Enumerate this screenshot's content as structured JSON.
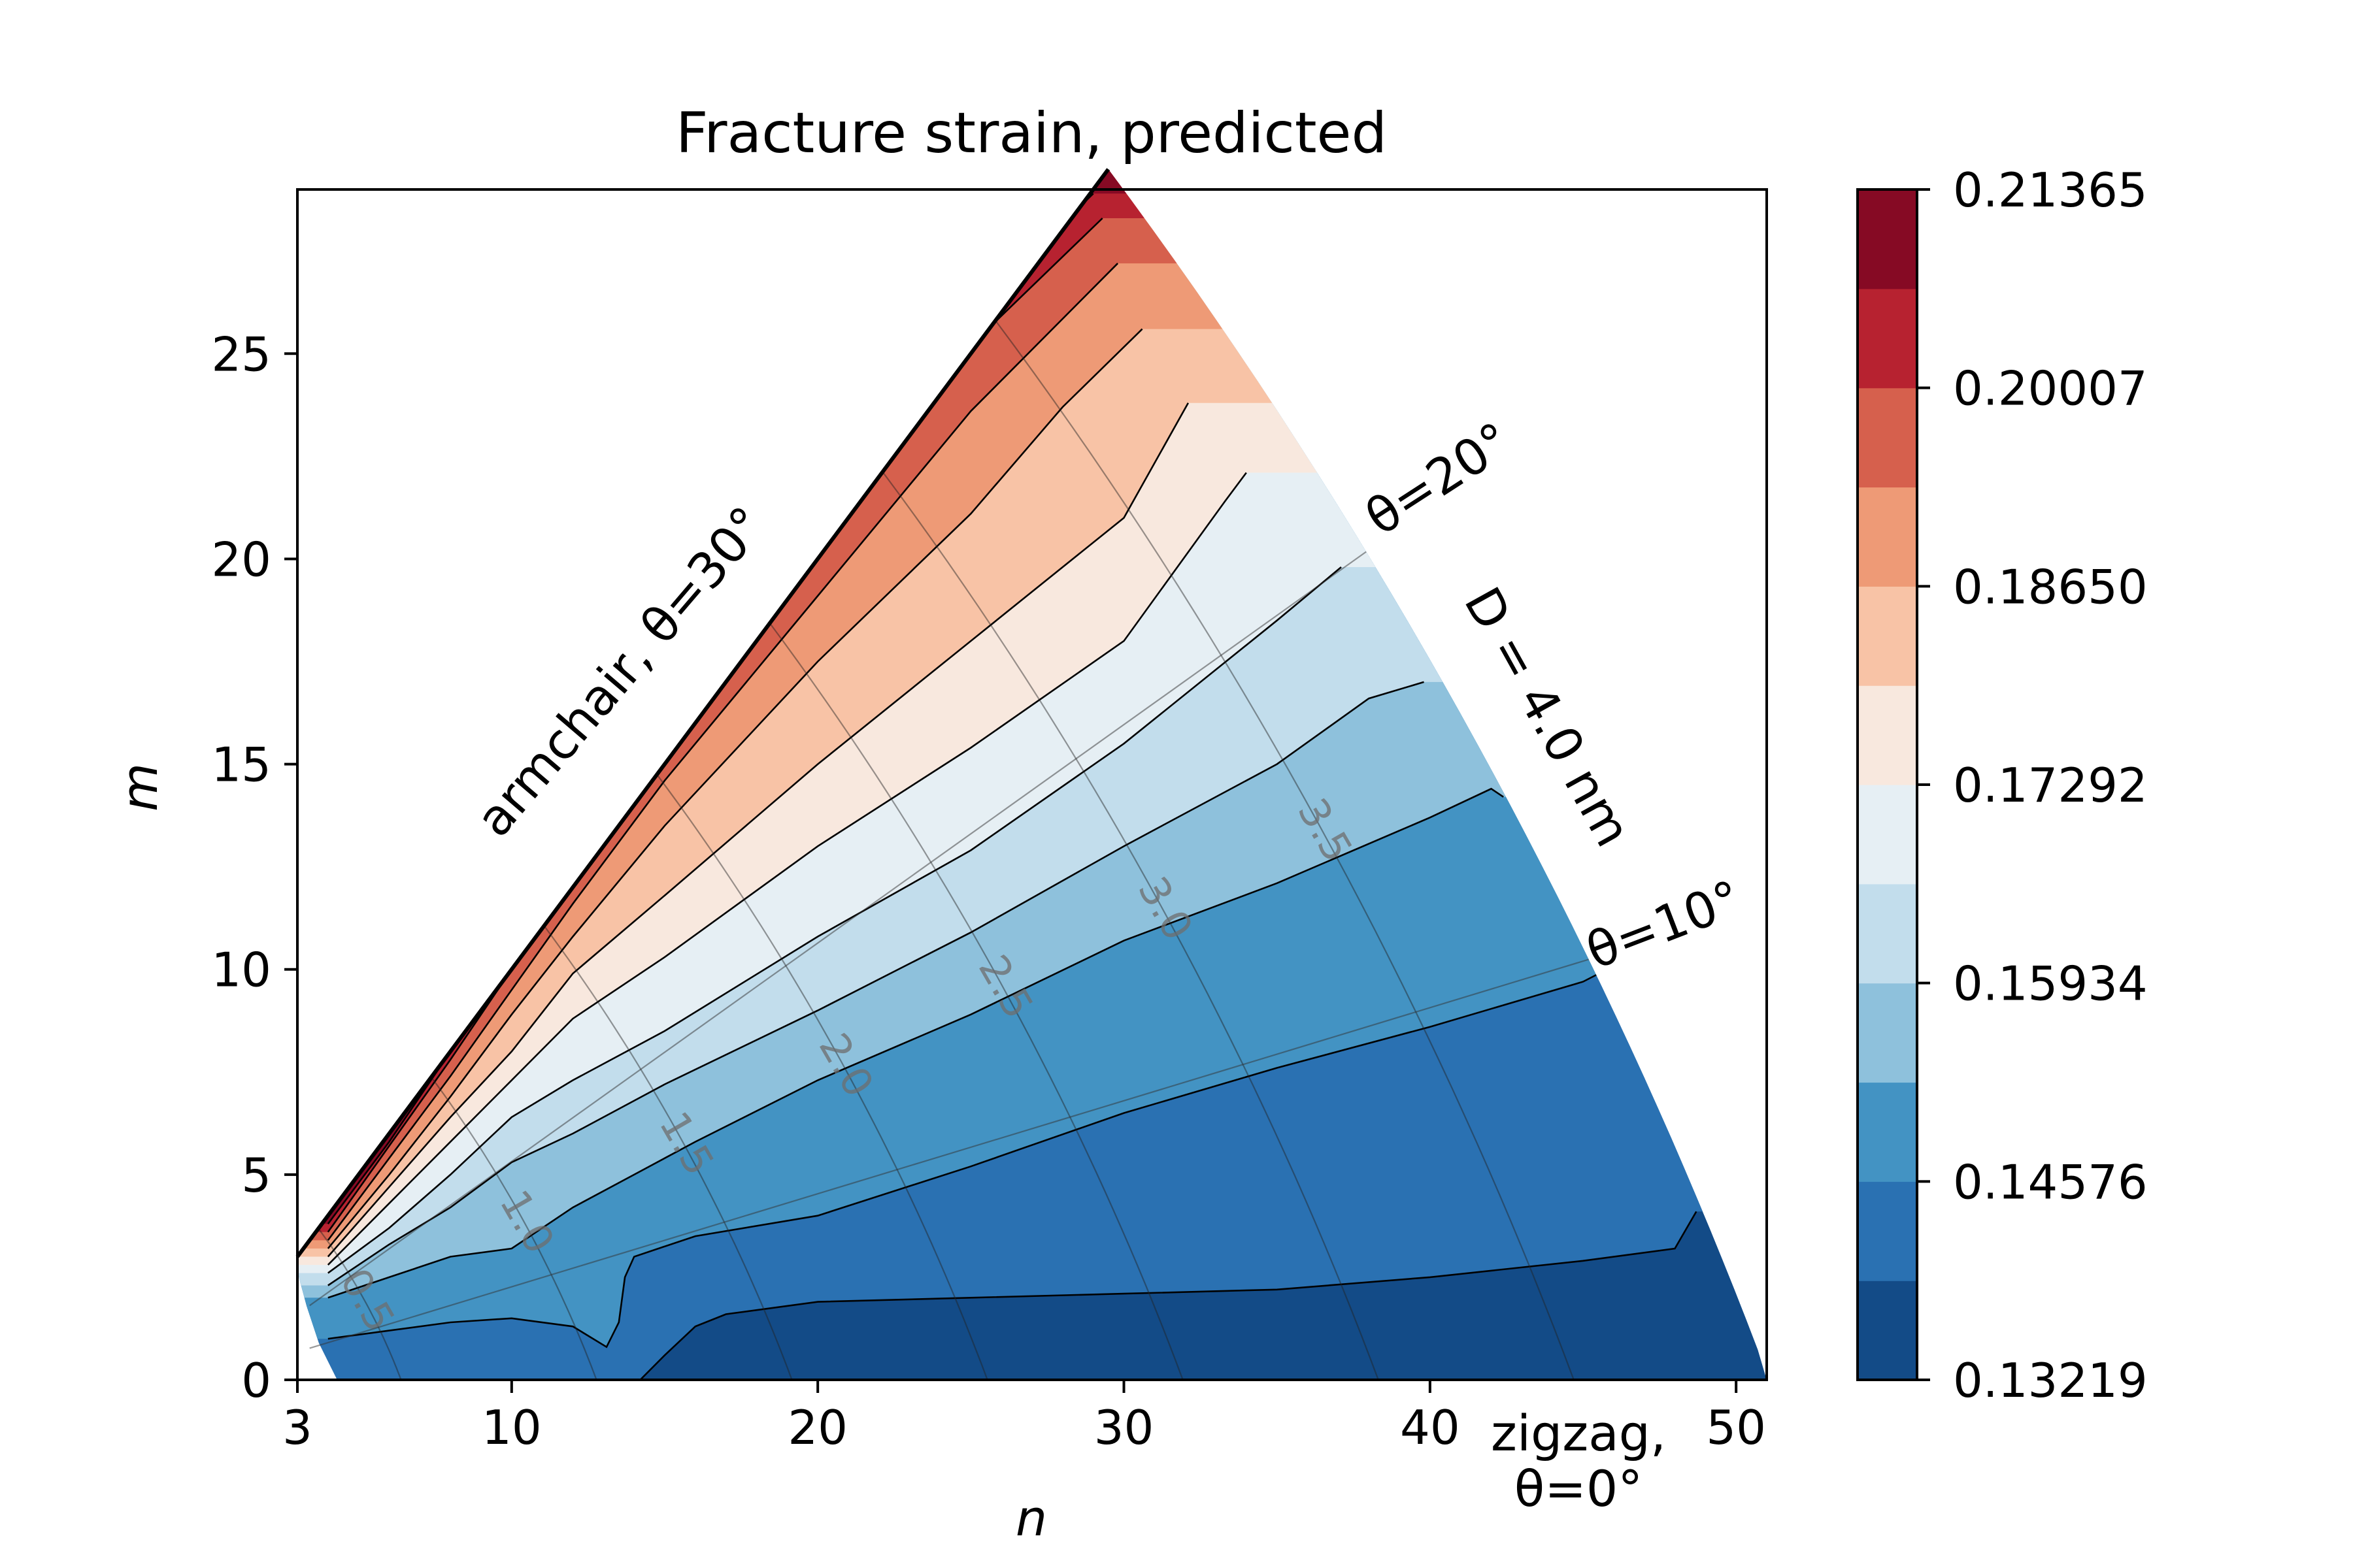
{
  "chart_data": {
    "type": "contourf",
    "title": "Fracture strain, predicted",
    "xlabel": "n",
    "ylabel": "m",
    "xlim": [
      3,
      51
    ],
    "ylim": [
      0,
      29
    ],
    "xticks": [
      3,
      10,
      20,
      30,
      40,
      50
    ],
    "yticks": [
      0,
      5,
      10,
      15,
      20,
      25
    ],
    "grid": false,
    "colormap": "RdBu_r",
    "colorbar": {
      "min": 0.13219,
      "max": 0.21365,
      "tick_labels": [
        "0.21365",
        "0.20007",
        "0.18650",
        "0.17292",
        "0.15934",
        "0.14576",
        "0.13219"
      ],
      "levels": [
        0.13219,
        0.13898,
        0.14576,
        0.15255,
        0.15934,
        0.16613,
        0.17292,
        0.17971,
        0.1865,
        0.19329,
        0.20007,
        0.20686,
        0.21365
      ],
      "colors": [
        "#134b87",
        "#2a71b2",
        "#4393c3",
        "#8ec1dc",
        "#c2ddec",
        "#e6eff4",
        "#f8e8de",
        "#f8c3a6",
        "#ee9a76",
        "#d6604d",
        "#b72230",
        "#860a24"
      ]
    },
    "domain": {
      "description": "region between zigzag (m=0), armchair (m=n) and D = 4.0 nm",
      "diameter_limit_nm": 4.0
    },
    "contour_boundaries": [
      {
        "upper_level": 0.13898,
        "points": [
          [
            14.2,
            0
          ],
          [
            15,
            0.6
          ],
          [
            16,
            1.3
          ],
          [
            17,
            1.6
          ],
          [
            20,
            1.9
          ],
          [
            25,
            2.0
          ],
          [
            30,
            2.1
          ],
          [
            35,
            2.2
          ],
          [
            40,
            2.5
          ],
          [
            45,
            2.9
          ],
          [
            48,
            3.2
          ],
          [
            48.7,
            4.1
          ]
        ]
      },
      {
        "upper_level": 0.14576,
        "points": [
          [
            4,
            1.0
          ],
          [
            6,
            1.2
          ],
          [
            8,
            1.4
          ],
          [
            10,
            1.5
          ],
          [
            12,
            1.3
          ],
          [
            13.1,
            0.8
          ],
          [
            13.5,
            1.4
          ],
          [
            13.7,
            2.5
          ],
          [
            14,
            3.0
          ],
          [
            16,
            3.5
          ],
          [
            20,
            4.0
          ],
          [
            25,
            5.2
          ],
          [
            30,
            6.5
          ],
          [
            35,
            7.6
          ],
          [
            40,
            8.6
          ],
          [
            45,
            9.7
          ],
          [
            46.3,
            10.2
          ]
        ]
      },
      {
        "upper_level": 0.15255,
        "points": [
          [
            4,
            2.0
          ],
          [
            6,
            2.5
          ],
          [
            8,
            3.0
          ],
          [
            10,
            3.2
          ],
          [
            12,
            4.2
          ],
          [
            14,
            5.0
          ],
          [
            16,
            5.8
          ],
          [
            20,
            7.3
          ],
          [
            25,
            8.9
          ],
          [
            30,
            10.7
          ],
          [
            35,
            12.1
          ],
          [
            40,
            13.7
          ],
          [
            42,
            14.4
          ],
          [
            42.4,
            14.2
          ]
        ]
      },
      {
        "upper_level": 0.15934,
        "points": [
          [
            4,
            2.3
          ],
          [
            6,
            3.3
          ],
          [
            8,
            4.2
          ],
          [
            10,
            5.3
          ],
          [
            12,
            6.0
          ],
          [
            15,
            7.2
          ],
          [
            20,
            9.0
          ],
          [
            25,
            10.9
          ],
          [
            30,
            13.0
          ],
          [
            35,
            15.0
          ],
          [
            38,
            16.6
          ],
          [
            39.8,
            17.0
          ]
        ]
      },
      {
        "upper_level": 0.16613,
        "points": [
          [
            4,
            2.6
          ],
          [
            6,
            3.7
          ],
          [
            8,
            5.0
          ],
          [
            10,
            6.4
          ],
          [
            12,
            7.3
          ],
          [
            15,
            8.5
          ],
          [
            20,
            10.8
          ],
          [
            25,
            12.9
          ],
          [
            30,
            15.5
          ],
          [
            35,
            18.5
          ],
          [
            37.1,
            19.8
          ]
        ]
      },
      {
        "upper_level": 0.17292,
        "points": [
          [
            4,
            2.8
          ],
          [
            6,
            4.3
          ],
          [
            8,
            5.8
          ],
          [
            10,
            7.3
          ],
          [
            12,
            8.8
          ],
          [
            15,
            10.3
          ],
          [
            20,
            13.0
          ],
          [
            25,
            15.4
          ],
          [
            30,
            18.0
          ],
          [
            33.3,
            21.4
          ],
          [
            34.0,
            22.1
          ]
        ]
      },
      {
        "upper_level": 0.17971,
        "points": [
          [
            4,
            3.0
          ],
          [
            6,
            4.7
          ],
          [
            8,
            6.4
          ],
          [
            10,
            8.0
          ],
          [
            12,
            9.9
          ],
          [
            15,
            11.8
          ],
          [
            20,
            15.0
          ],
          [
            25,
            18.0
          ],
          [
            30,
            21.0
          ],
          [
            32.1,
            23.8
          ]
        ]
      },
      {
        "upper_level": 0.1865,
        "points": [
          [
            4,
            3.2
          ],
          [
            6,
            5.0
          ],
          [
            8,
            6.9
          ],
          [
            10,
            8.9
          ],
          [
            12,
            10.8
          ],
          [
            15,
            13.5
          ],
          [
            20,
            17.5
          ],
          [
            25,
            21.1
          ],
          [
            28,
            23.7
          ],
          [
            30.6,
            25.6
          ]
        ]
      },
      {
        "upper_level": 0.19329,
        "points": [
          [
            4,
            3.4
          ],
          [
            6,
            5.4
          ],
          [
            8,
            7.4
          ],
          [
            10,
            9.5
          ],
          [
            12,
            11.6
          ],
          [
            15,
            14.6
          ],
          [
            20,
            19.1
          ],
          [
            25,
            23.6
          ],
          [
            29.8,
            27.2
          ]
        ]
      },
      {
        "upper_level": 0.20007,
        "points": [
          [
            4,
            3.6
          ],
          [
            6,
            5.7
          ],
          [
            8,
            7.8
          ],
          [
            10,
            10.0
          ],
          [
            12,
            12.2
          ],
          [
            15,
            15.4
          ],
          [
            20,
            20.3
          ],
          [
            25,
            25.2
          ],
          [
            29.3,
            28.3
          ]
        ]
      },
      {
        "upper_level": 0.20686,
        "points": [
          [
            4,
            3.8
          ],
          [
            6,
            5.8
          ],
          [
            8,
            8.0
          ],
          [
            10,
            10.3
          ],
          [
            12,
            12.5
          ],
          [
            15,
            15.8
          ],
          [
            20,
            21.0
          ],
          [
            25,
            26.0
          ],
          [
            29.0,
            28.9
          ]
        ]
      }
    ],
    "diameter_isolines": [
      {
        "label": "0.5",
        "D": 0.5
      },
      {
        "label": "1.0",
        "D": 1.0
      },
      {
        "label": "1.5",
        "D": 1.5
      },
      {
        "label": "2.0",
        "D": 2.0
      },
      {
        "label": "2.5",
        "D": 2.5
      },
      {
        "label": "3.0",
        "D": 3.0
      },
      {
        "label": "3.5",
        "D": 3.5
      }
    ],
    "chirality_lines": [
      {
        "label": "θ=20°",
        "theta_deg": 20
      },
      {
        "label": "θ=10°",
        "theta_deg": 10
      }
    ],
    "annotations": {
      "armchair": "armchair, θ=30°",
      "zigzag_line1": "zigzag,",
      "zigzag_line2": "θ=0°",
      "diameter_limit": "D = 4.0 nm",
      "theta20": "θ=20°",
      "theta10": "θ=10°"
    }
  }
}
